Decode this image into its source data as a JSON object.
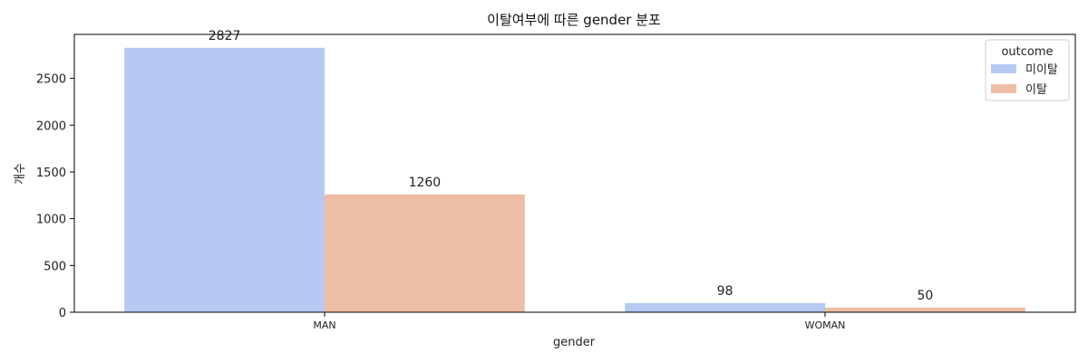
{
  "chart_data": {
    "type": "bar",
    "title": "이탈여부에 따른 gender 분포",
    "xlabel": "gender",
    "ylabel": "개수",
    "categories": [
      "MAN",
      "WOMAN"
    ],
    "series": [
      {
        "name": "미이탈",
        "values": [
          2827,
          98
        ],
        "color": "#b5c9f2"
      },
      {
        "name": "이탈",
        "values": [
          1260,
          50
        ],
        "color": "#eebda6"
      }
    ],
    "ylim": [
      0,
      2970
    ],
    "yticks": [
      0,
      500,
      1000,
      1500,
      2000,
      2500
    ],
    "legend": {
      "title": "outcome",
      "placement": "top-right"
    },
    "grid": false
  }
}
